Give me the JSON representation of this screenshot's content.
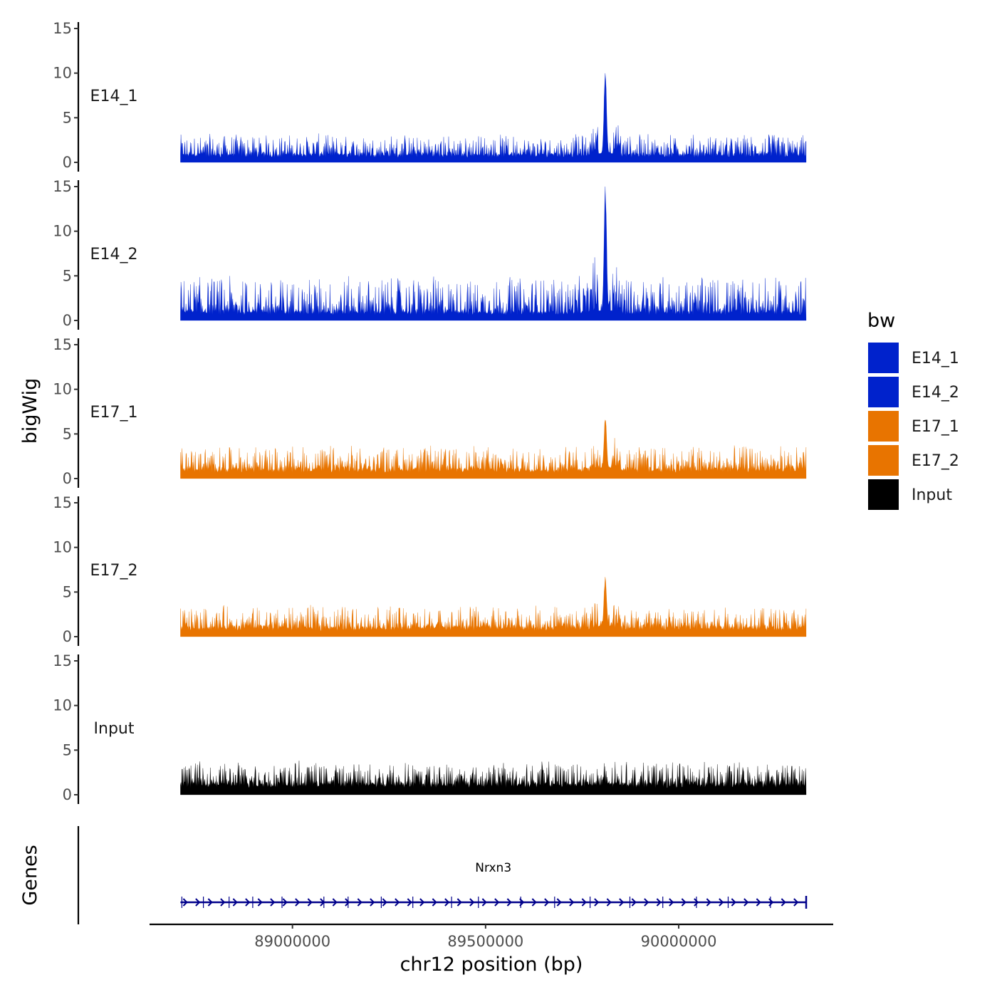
{
  "chart_data": {
    "type": "area",
    "chromosome": "chr12",
    "xlabel": "chr12 position (bp)",
    "ylabel": "bigWig",
    "genes_label": "Genes",
    "xlim": [
      88630000,
      90400000
    ],
    "data_range": [
      88710000,
      90330000
    ],
    "x_ticks": [
      89000000,
      89500000,
      90000000
    ],
    "x_tick_labels": [
      "89000000",
      "89500000",
      "90000000"
    ],
    "ylim": [
      0,
      15
    ],
    "y_ticks": [
      0,
      5,
      10,
      15
    ],
    "y_tick_labels": [
      "0",
      "5",
      "10",
      "15"
    ],
    "legend": {
      "title": "bw",
      "position": "right",
      "entries": [
        {
          "label": "E14_1",
          "color": "#0022CC"
        },
        {
          "label": "E14_2",
          "color": "#0022CC"
        },
        {
          "label": "E17_1",
          "color": "#E87400"
        },
        {
          "label": "E17_2",
          "color": "#E87400"
        },
        {
          "label": "Input",
          "color": "#000000"
        }
      ]
    },
    "series": [
      {
        "name": "E14_1",
        "color": "#0022CC",
        "baseline": 1.0,
        "noise_max": 2.8,
        "peak": {
          "x": 89810000,
          "value": 9.8
        }
      },
      {
        "name": "E14_2",
        "color": "#0022CC",
        "baseline": 1.1,
        "noise_max": 4.5,
        "peak": {
          "x": 89810000,
          "value": 14.8
        }
      },
      {
        "name": "E17_1",
        "color": "#E87400",
        "baseline": 1.2,
        "noise_max": 3.2,
        "peak": {
          "x": 89810000,
          "value": 6.2
        }
      },
      {
        "name": "E17_2",
        "color": "#E87400",
        "baseline": 1.2,
        "noise_max": 3.0,
        "peak": {
          "x": 89810000,
          "value": 6.0
        }
      },
      {
        "name": "Input",
        "color": "#000000",
        "baseline": 1.4,
        "noise_max": 3.2,
        "peak": null
      }
    ],
    "genes": [
      {
        "name": "Nrxn3",
        "start": 88710000,
        "end": 90330000,
        "strand": "+",
        "color": "#00008B"
      }
    ]
  }
}
